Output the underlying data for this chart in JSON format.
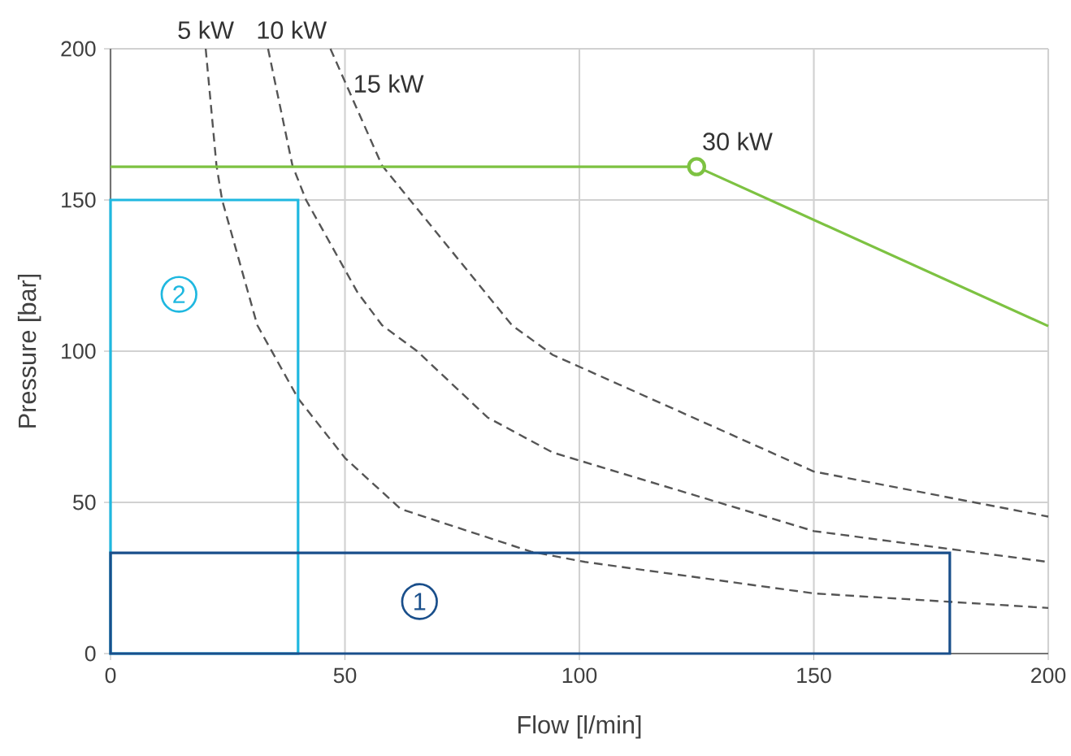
{
  "chart_data": {
    "type": "line",
    "xlabel": "Flow [l/min]",
    "ylabel": "Pressure [bar]",
    "xlim": [
      0,
      200
    ],
    "ylim": [
      0,
      200
    ],
    "xticks": [
      0,
      50,
      100,
      150,
      200
    ],
    "yticks": [
      0,
      50,
      100,
      150,
      200
    ],
    "grid": true,
    "series": [
      {
        "name": "5 kW",
        "color": "#555555",
        "line_style": "dashed",
        "x": [
          20.3,
          22.6,
          23.8,
          31.3,
          40,
          50,
          61.9,
          89.7,
          101.2,
          150,
          200
        ],
        "values": [
          200,
          161.4,
          150,
          108.6,
          84.4,
          64.7,
          47.8,
          33.7,
          30.3,
          19.9,
          15.1
        ]
      },
      {
        "name": "10 kW",
        "color": "#555555",
        "line_style": "dashed",
        "x": [
          33.6,
          38.8,
          41.7,
          52.7,
          57.9,
          65.4,
          80.4,
          94.3,
          150,
          200
        ],
        "values": [
          200,
          161.4,
          150,
          119.4,
          108.6,
          100,
          78.1,
          66.5,
          40.5,
          30.3
        ]
      },
      {
        "name": "15 kW",
        "color": "#555555",
        "line_style": "dashed",
        "x": [
          46.9,
          57.9,
          85.6,
          94.3,
          150,
          200
        ],
        "values": [
          200,
          161.4,
          108.6,
          98.8,
          60.2,
          45.3
        ]
      },
      {
        "color": "#7dc242",
        "line_style": "solid",
        "x": [
          0,
          125,
          200
        ],
        "values": [
          161,
          161,
          108.3
        ]
      },
      {
        "type": "scatter",
        "marker": "circle",
        "color": "#7dc242",
        "x": [
          125
        ],
        "values": [
          161
        ]
      },
      {
        "type": "histogram",
        "color": "#1fb8e0",
        "bins": [
          0,
          40
        ],
        "values": [
          150
        ]
      },
      {
        "type": "histogram",
        "color": "#1a4f8b",
        "bins": [
          0,
          179
        ],
        "values": [
          33.3
        ]
      }
    ],
    "annotations": [
      {
        "text": "30 kW",
        "x": 125,
        "y": 161
      },
      {
        "text": "1",
        "x": 65.9,
        "y": 17.2
      },
      {
        "text": "2",
        "x": 14.6,
        "y": 118.8
      }
    ]
  }
}
